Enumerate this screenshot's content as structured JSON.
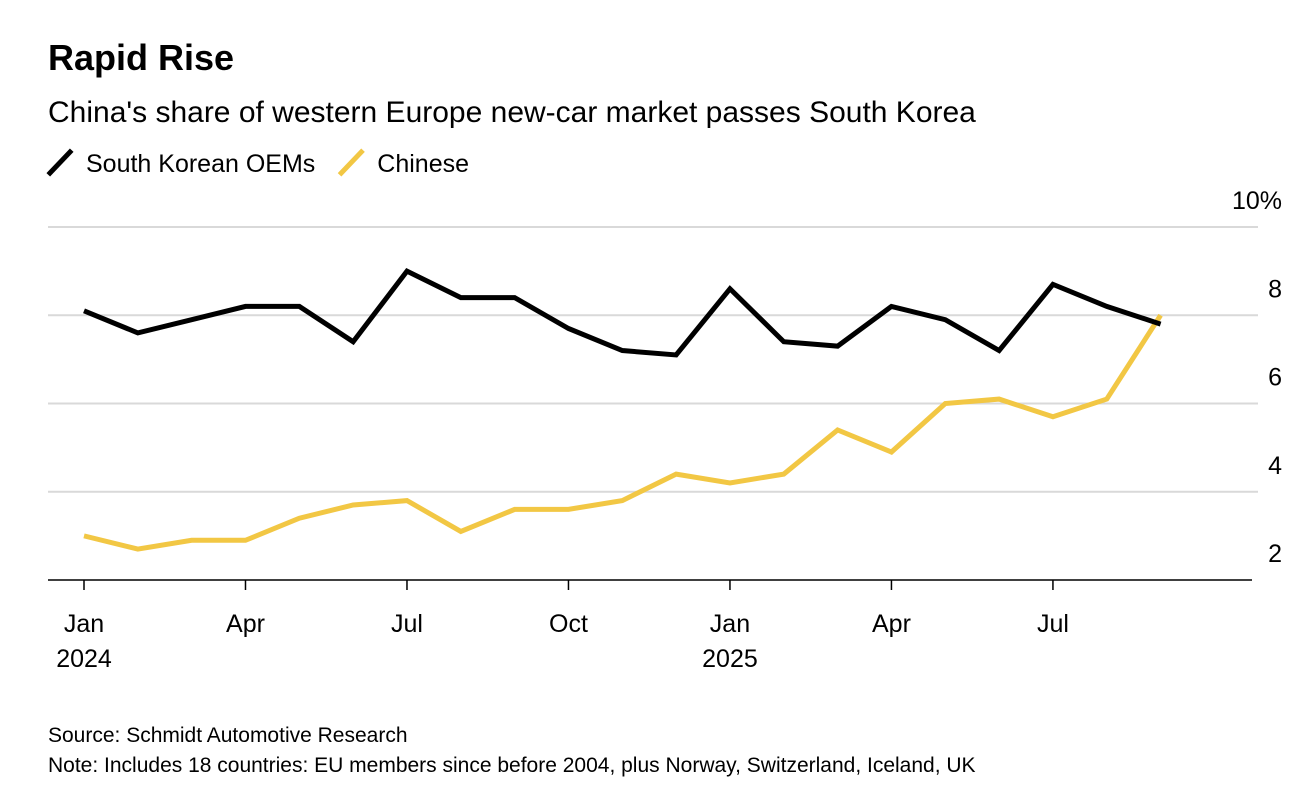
{
  "chart_data": {
    "type": "line",
    "title": "Rapid Rise",
    "subtitle": "China's share of western Europe new-car market passes South Korea",
    "categories": [
      "Jan 2024",
      null,
      null,
      "Apr",
      null,
      null,
      "Jul",
      null,
      null,
      "Oct",
      null,
      null,
      "Jan 2025",
      null,
      null,
      "Apr",
      null,
      null,
      "Jul",
      null,
      null
    ],
    "series": [
      {
        "name": "South Korean OEMs",
        "color": "#000000",
        "values": [
          8.1,
          7.6,
          7.9,
          8.2,
          8.2,
          7.4,
          9.0,
          8.4,
          8.4,
          7.7,
          7.2,
          7.1,
          8.6,
          7.4,
          7.3,
          8.2,
          7.9,
          7.2,
          8.7,
          8.2,
          7.8
        ]
      },
      {
        "name": "Chinese",
        "color": "#f2c744",
        "values": [
          3.0,
          2.7,
          2.9,
          2.9,
          3.4,
          3.7,
          3.8,
          3.1,
          3.6,
          3.6,
          3.8,
          4.4,
          4.2,
          4.4,
          5.4,
          4.9,
          6.0,
          6.1,
          5.7,
          6.1,
          8.0
        ]
      }
    ],
    "ylim": [
      2,
      10
    ],
    "yticks": [
      2,
      4,
      6,
      8,
      {
        "value": 10,
        "label": "10%"
      }
    ],
    "grid": true,
    "legend": "top-left",
    "source": "Source: Schmidt Automotive Research",
    "note": "Note: Includes 18 countries: EU members since before 2004, plus Norway, Switzerland, Iceland, UK"
  }
}
